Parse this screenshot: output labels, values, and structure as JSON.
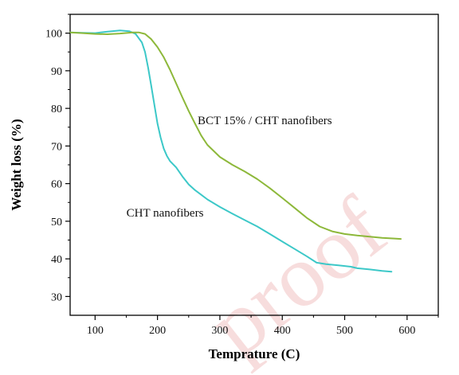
{
  "watermark": "proof",
  "colors": {
    "cht": "#3CC8C8",
    "bct": "#8DB83A",
    "axis": "#000000",
    "watermark": "#f7dddd"
  },
  "chart_data": {
    "type": "line",
    "title": "",
    "xlabel": "Temprature (C)",
    "ylabel": "Weight loss (%)",
    "xlim": [
      60,
      650
    ],
    "ylim": [
      25,
      105
    ],
    "xticks": [
      100,
      200,
      300,
      400,
      500,
      600
    ],
    "yticks": [
      30,
      40,
      50,
      60,
      70,
      80,
      90,
      100
    ],
    "grid": false,
    "legend": "none",
    "annotations": [
      {
        "text": "BCT 15% / CHT nanofibers",
        "x": 372,
        "y": 75.8,
        "series": "bct"
      },
      {
        "text": "CHT nanofibers",
        "x": 212,
        "y": 51.2,
        "series": "cht"
      }
    ],
    "series": [
      {
        "id": "cht",
        "x": [
          60,
          80,
          100,
          120,
          140,
          155,
          165,
          175,
          180,
          185,
          190,
          195,
          200,
          205,
          210,
          215,
          220,
          230,
          240,
          250,
          260,
          280,
          300,
          320,
          340,
          360,
          380,
          400,
          420,
          440,
          455,
          470,
          490,
          510,
          520,
          540,
          560,
          575
        ],
        "y": [
          100.2,
          100.1,
          100.0,
          100.4,
          100.7,
          100.5,
          99.8,
          97.5,
          95.0,
          90.8,
          86.0,
          81.0,
          76.0,
          72.3,
          69.3,
          67.4,
          66.0,
          64.3,
          61.9,
          59.8,
          58.3,
          55.8,
          53.8,
          52.0,
          50.3,
          48.6,
          46.6,
          44.6,
          42.6,
          40.6,
          39.0,
          38.6,
          38.3,
          37.9,
          37.5,
          37.2,
          36.8,
          36.6
        ]
      },
      {
        "id": "bct",
        "x": [
          60,
          80,
          100,
          120,
          140,
          160,
          170,
          180,
          190,
          200,
          210,
          220,
          230,
          240,
          250,
          260,
          270,
          280,
          300,
          320,
          340,
          360,
          380,
          400,
          420,
          440,
          460,
          480,
          500,
          520,
          540,
          560,
          580,
          590
        ],
        "y": [
          100.2,
          100.0,
          99.8,
          99.7,
          99.9,
          100.2,
          100.2,
          99.8,
          98.4,
          96.3,
          93.6,
          90.3,
          86.6,
          82.9,
          79.3,
          76.0,
          72.8,
          70.3,
          67.1,
          65.0,
          63.2,
          61.2,
          58.8,
          56.2,
          53.5,
          50.8,
          48.6,
          47.3,
          46.6,
          46.2,
          45.9,
          45.6,
          45.4,
          45.3
        ]
      }
    ]
  }
}
